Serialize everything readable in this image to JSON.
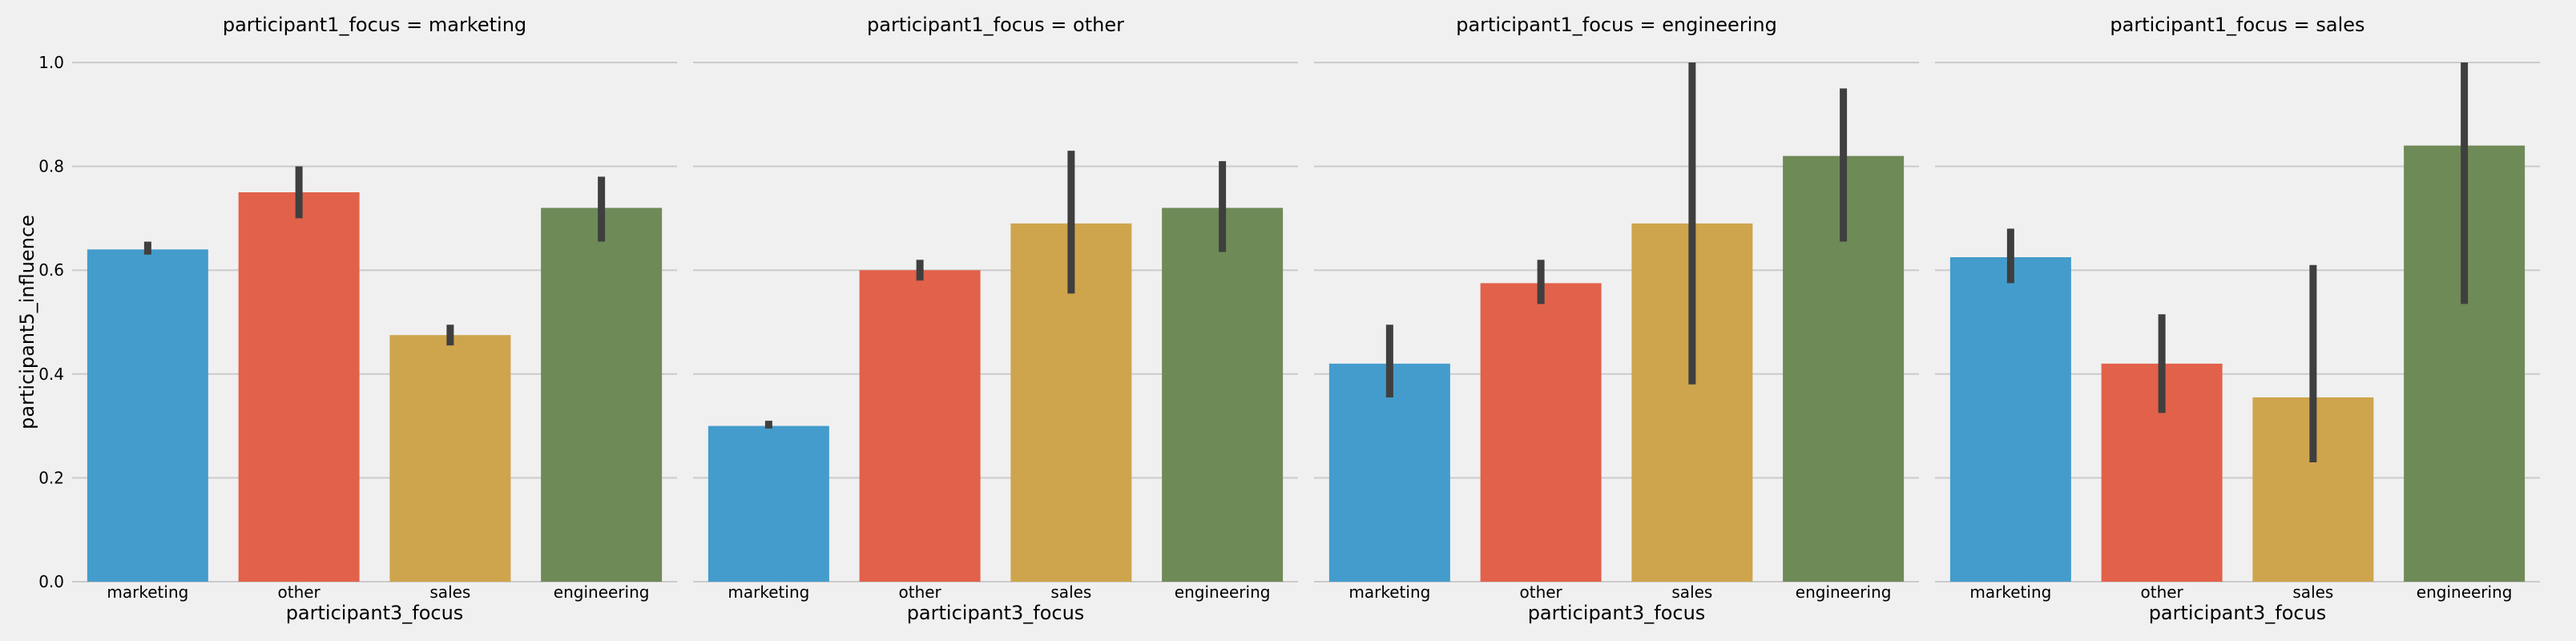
{
  "chart_data": {
    "type": "bar",
    "facet_variable": "participant1_focus",
    "xlabel": "participant3_focus",
    "ylabel": "participant5_influence",
    "categories": [
      "marketing",
      "other",
      "sales",
      "engineering"
    ],
    "ylim": [
      0,
      1.0
    ],
    "yticks": [
      "0.0",
      "0.2",
      "0.4",
      "0.6",
      "0.8",
      "1.0"
    ],
    "grid": true,
    "colors": {
      "background": "#f0f0f0",
      "marketing": "#449ccc",
      "other": "#e2614a",
      "sales": "#cea54c",
      "engineering": "#6e8a57",
      "errorbar": "#3f3f3f",
      "grid": "#cbcbcb"
    },
    "facets": [
      {
        "title": "participant1_focus = marketing",
        "values": [
          0.64,
          0.75,
          0.475,
          0.72
        ],
        "ci": [
          [
            0.63,
            0.655
          ],
          [
            0.7,
            0.8
          ],
          [
            0.455,
            0.495
          ],
          [
            0.655,
            0.78
          ]
        ]
      },
      {
        "title": "participant1_focus = other",
        "values": [
          0.3,
          0.6,
          0.69,
          0.72
        ],
        "ci": [
          [
            0.295,
            0.31
          ],
          [
            0.58,
            0.62
          ],
          [
            0.555,
            0.83
          ],
          [
            0.635,
            0.81
          ]
        ]
      },
      {
        "title": "participant1_focus = engineering",
        "values": [
          0.42,
          0.575,
          0.69,
          0.82
        ],
        "ci": [
          [
            0.355,
            0.495
          ],
          [
            0.535,
            0.62
          ],
          [
            0.38,
            1.0
          ],
          [
            0.655,
            0.95
          ]
        ]
      },
      {
        "title": "participant1_focus = sales",
        "values": [
          0.625,
          0.42,
          0.355,
          0.84
        ],
        "ci": [
          [
            0.575,
            0.68
          ],
          [
            0.325,
            0.515
          ],
          [
            0.23,
            0.61
          ],
          [
            0.535,
            1.0
          ]
        ]
      }
    ]
  }
}
